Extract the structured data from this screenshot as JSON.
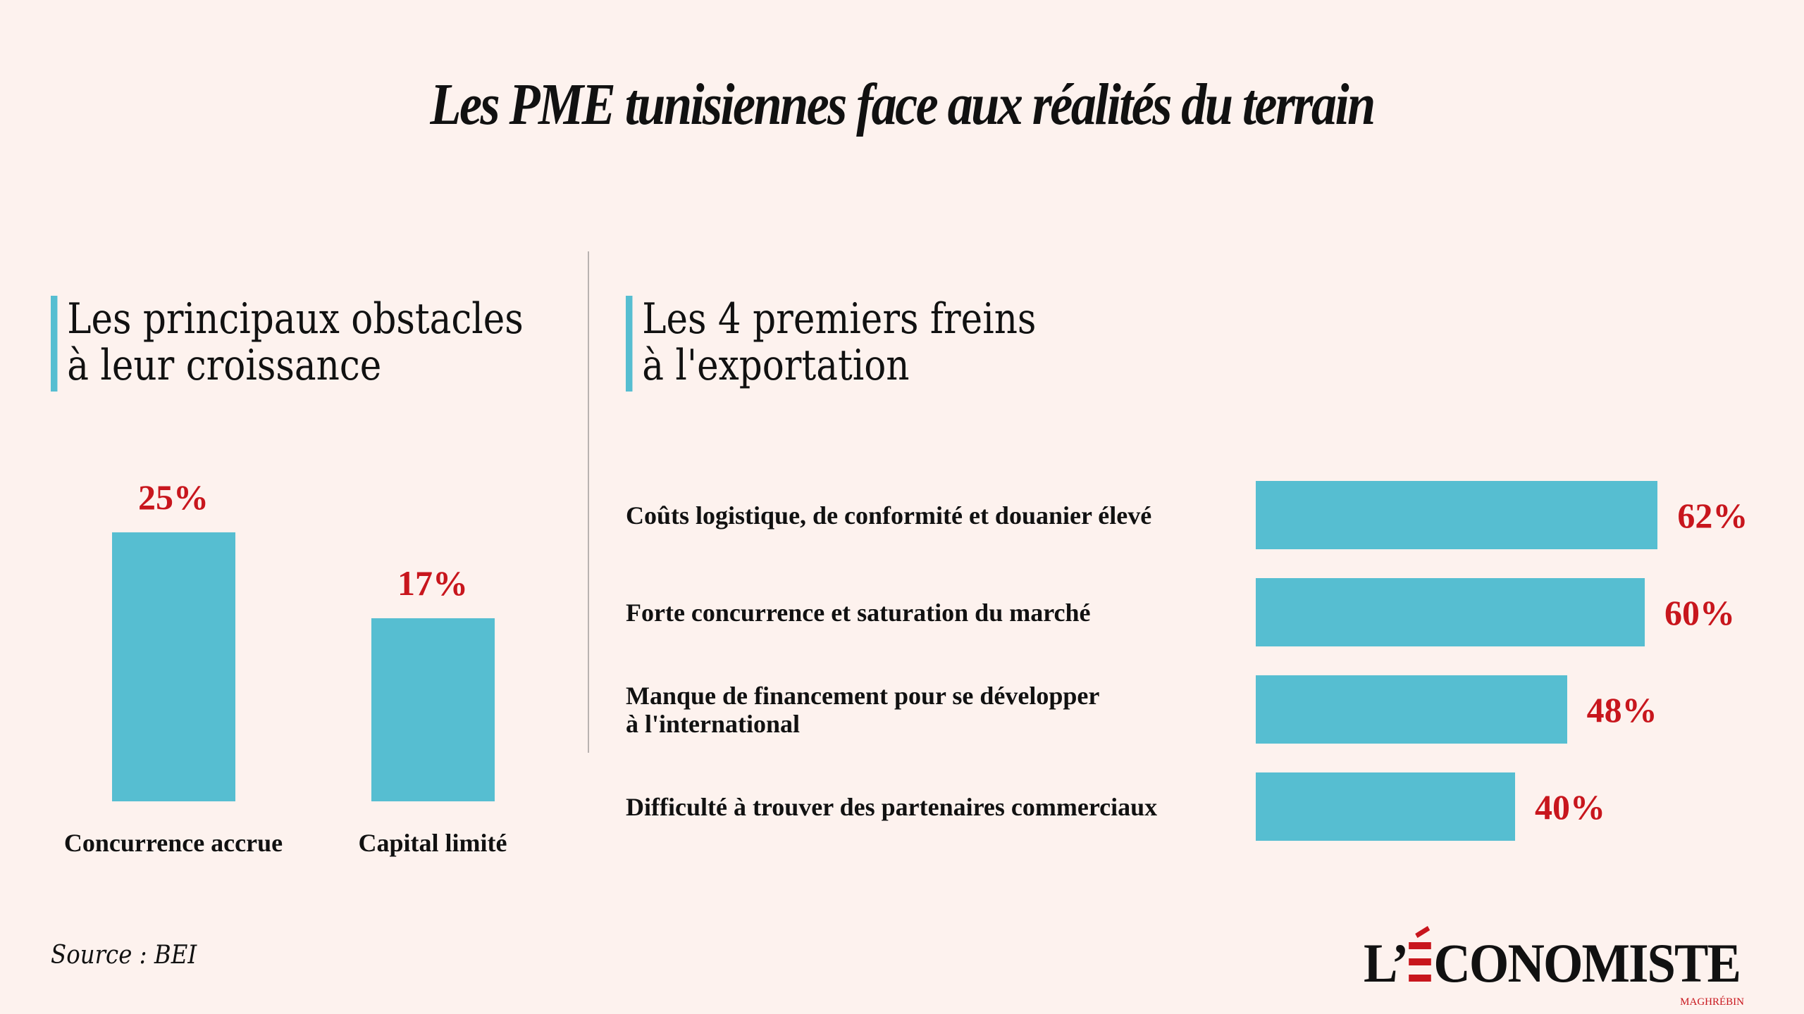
{
  "title": "Les PME tunisiennes face aux réalités du terrain",
  "left_section": {
    "heading_line1": "Les principaux obstacles",
    "heading_line2": "à leur croissance"
  },
  "right_section": {
    "heading_line1": "Les 4 premiers freins",
    "heading_line2": "à l'exportation"
  },
  "colors": {
    "background": "#FDF2EE",
    "bar": "#56BED1",
    "value_label": "#C8161D",
    "accent": "#56BED1"
  },
  "chart_data": [
    {
      "type": "bar",
      "orientation": "vertical",
      "title": "Les principaux obstacles à leur croissance",
      "categories": [
        "Concurrence accrue",
        "Capital limité"
      ],
      "values": [
        25,
        17
      ],
      "value_labels": [
        "25%",
        "17%"
      ],
      "unit": "%",
      "grid": false,
      "axes_visible": false
    },
    {
      "type": "bar",
      "orientation": "horizontal",
      "title": "Les 4 premiers freins à l'exportation",
      "categories": [
        [
          "Coûts logistique, de conformité et douanier élevé"
        ],
        [
          "Forte concurrence et saturation du marché"
        ],
        [
          "Manque de financement pour se développer",
          "à l'international"
        ],
        [
          "Difficulté à trouver des partenaires commerciaux"
        ]
      ],
      "values": [
        62,
        60,
        48,
        40
      ],
      "value_labels": [
        "62%",
        "60%",
        "48%",
        "40%"
      ],
      "unit": "%",
      "grid": false,
      "axes_visible": false
    }
  ],
  "footer": {
    "source": "Source : BEI",
    "logo_prefix": "L’",
    "logo_main": "CONOMISTE",
    "logo_sub": "MAGHRÉBIN"
  }
}
